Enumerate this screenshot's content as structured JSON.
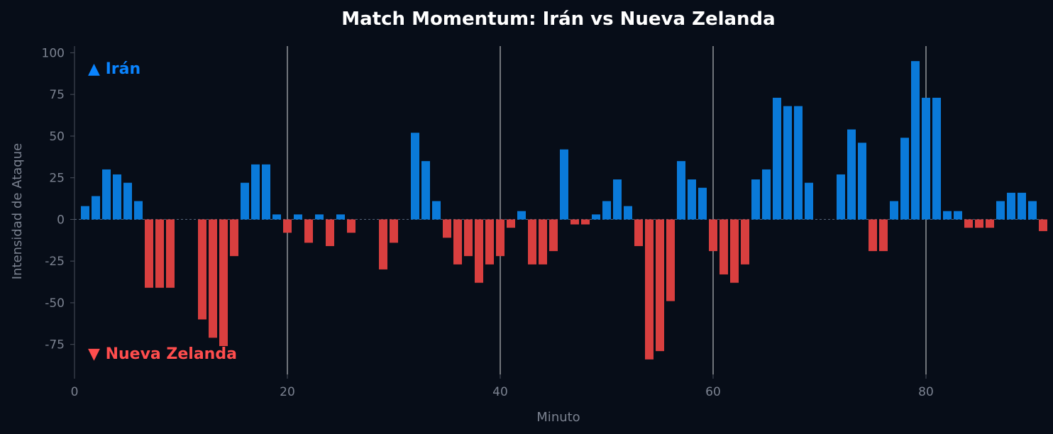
{
  "chart_data": {
    "type": "bar",
    "title": "Match Momentum: Irán vs Nueva Zelanda",
    "xlabel": "Minuto",
    "ylabel": "Intensidad de Ataque",
    "xlim": [
      0,
      91
    ],
    "ylim": [
      -93,
      104
    ],
    "xticks": [
      0,
      20,
      40,
      60,
      80
    ],
    "yticks": [
      -75,
      -50,
      -25,
      0,
      25,
      50,
      75,
      100
    ],
    "vlines": [
      20,
      40,
      60,
      80
    ],
    "x": [
      1,
      2,
      3,
      4,
      5,
      6,
      7,
      8,
      9,
      10,
      11,
      12,
      13,
      14,
      15,
      16,
      17,
      18,
      19,
      20,
      21,
      22,
      23,
      24,
      25,
      26,
      27,
      28,
      29,
      30,
      31,
      32,
      33,
      34,
      35,
      36,
      37,
      38,
      39,
      40,
      41,
      42,
      43,
      44,
      45,
      46,
      47,
      48,
      49,
      50,
      51,
      52,
      53,
      54,
      55,
      56,
      57,
      58,
      59,
      60,
      61,
      62,
      63,
      64,
      65,
      66,
      67,
      68,
      69,
      70,
      71,
      72,
      73,
      74,
      75,
      76,
      77,
      78,
      79,
      80,
      81,
      82,
      83,
      84,
      85,
      86,
      87,
      88,
      89,
      90,
      91
    ],
    "values": [
      8,
      14,
      30,
      27,
      22,
      11,
      -41,
      -41,
      -41,
      0,
      0,
      -60,
      -71,
      -76,
      -22,
      22,
      33,
      33,
      3,
      -8,
      3,
      -14,
      3,
      -16,
      3,
      -8,
      0,
      0,
      -30,
      -14,
      0,
      52,
      35,
      11,
      -11,
      -27,
      -22,
      -38,
      -27,
      -22,
      -5,
      5,
      -27,
      -27,
      -19,
      42,
      -3,
      -3,
      3,
      11,
      24,
      8,
      -16,
      -84,
      -79,
      -49,
      35,
      24,
      19,
      -19,
      -33,
      -38,
      -27,
      24,
      30,
      73,
      68,
      68,
      22,
      0,
      0,
      27,
      54,
      46,
      -19,
      -19,
      11,
      49,
      95,
      73,
      73,
      5,
      5,
      -5,
      -5,
      -5,
      11,
      16,
      16,
      11,
      -7
    ],
    "series_annotation": 5,
    "legend": [
      {
        "label": "▲ Irán",
        "color": "#0a84ff"
      },
      {
        "label": "▼ Nueva Zelanda",
        "color": "#ff4d4d"
      }
    ],
    "colors": {
      "positive": "#0a7ad9",
      "negative": "#d93f3f",
      "background": "#070d18",
      "vline": "#ffffff",
      "axis": "#4a505c",
      "zero_line": "#5a6a80"
    },
    "legend_placement": "inside-left",
    "grid": false
  }
}
